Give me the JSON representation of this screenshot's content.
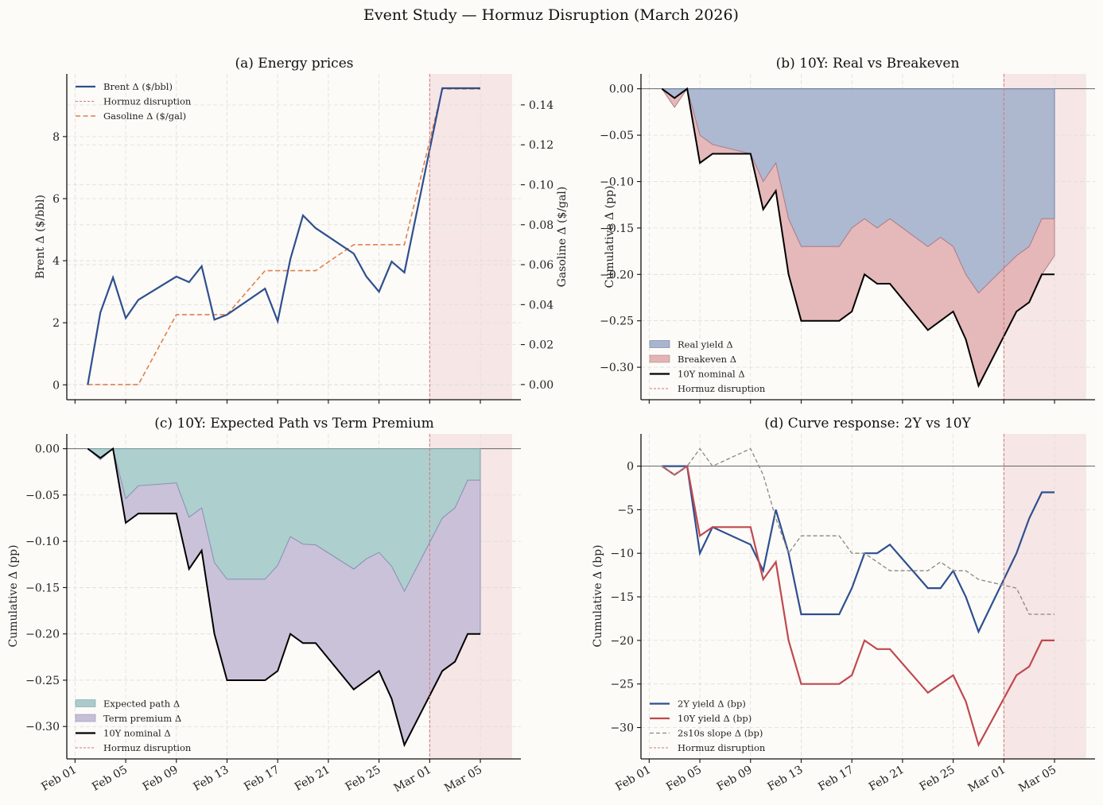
{
  "figure": {
    "title": "Event Study — Hormuz Disruption (March 2026)",
    "background": "#fcfbf7"
  },
  "colors": {
    "brent": "#2f4f8f",
    "gasoline": "#e0804f",
    "event_line": "#d07a7a",
    "event_shade": "#f6e6e6",
    "real_fill": "#a9b5cd",
    "real_edge": "#6d7fa8",
    "breakeven_fill": "#e4b4b5",
    "breakeven_edge": "#b07f8a",
    "expected_fill": "#a9cccb",
    "expected_edge": "#7e9eaa",
    "term_fill": "#c7bfd7",
    "term_edge": "#8c92b6",
    "nominal": "#000000",
    "y2": "#2f4f8f",
    "y10": "#c0484f",
    "slope": "#888888",
    "zero_line": "#555555"
  },
  "chart_data": {
    "x_dates": [
      "Feb 02",
      "Feb 03",
      "Feb 04",
      "Feb 05",
      "Feb 06",
      "Feb 09",
      "Feb 10",
      "Feb 11",
      "Feb 12",
      "Feb 13",
      "Feb 16",
      "Feb 17",
      "Feb 18",
      "Feb 19",
      "Feb 20",
      "Feb 23",
      "Feb 24",
      "Feb 25",
      "Feb 26",
      "Feb 27",
      "Mar 02",
      "Mar 03",
      "Mar 04",
      "Mar 05"
    ],
    "x_day_offset_from_feb01": [
      1,
      2,
      3,
      4,
      5,
      8,
      9,
      10,
      11,
      12,
      15,
      16,
      17,
      18,
      19,
      22,
      23,
      24,
      25,
      26,
      29,
      30,
      31,
      32
    ],
    "x_ticks": {
      "labels": [
        "Feb 01",
        "Feb 05",
        "Feb 09",
        "Feb 13",
        "Feb 17",
        "Feb 21",
        "Feb 25",
        "Mar 01",
        "Mar 05"
      ],
      "day_offsets": [
        0,
        4,
        8,
        12,
        16,
        20,
        24,
        28,
        32
      ]
    },
    "x_range_days": [
      -0.65,
      35.2
    ],
    "event": {
      "label": "Hormuz disruption",
      "start_day": 28,
      "shade_end_day": 34.5
    },
    "panels": [
      {
        "id": "a",
        "type": "line",
        "title": "(a) Energy prices",
        "ylabel": "Brent Δ ($/bbl)",
        "ylim": [
          -0.48,
          10.02
        ],
        "yticks": [
          0,
          2,
          4,
          6,
          8
        ],
        "ytick_labels": [
          "0",
          "2",
          "4",
          "6",
          "8"
        ],
        "y2label": "Gasoline Δ ($/gal)",
        "y2lim": [
          -0.0076,
          0.1555
        ],
        "y2ticks": [
          0.0,
          0.02,
          0.04,
          0.06,
          0.08,
          0.1,
          0.12,
          0.14
        ],
        "y2tick_labels": [
          "0.00",
          "0.02",
          "0.04",
          "0.06",
          "0.08",
          "0.10",
          "0.12",
          "0.14"
        ],
        "legend": {
          "placement": "upper-left",
          "entries": [
            "Brent Δ ($/bbl)",
            "Hormuz disruption",
            "Gasoline Δ ($/gal)"
          ]
        },
        "series": [
          {
            "name": "Brent Δ ($/bbl)",
            "axis": "left",
            "style": "solid",
            "values": [
              0,
              2.33,
              3.46,
              2.15,
              2.74,
              3.49,
              3.31,
              3.82,
              2.1,
              2.26,
              3.1,
              2.05,
              4.05,
              5.46,
              5.05,
              4.23,
              3.49,
              3.0,
              3.97,
              3.62,
              9.56,
              9.56,
              9.56,
              9.56
            ]
          },
          {
            "name": "Gasoline Δ ($/gal)",
            "axis": "right",
            "style": "dashed",
            "values": [
              0,
              0,
              0,
              0,
              0,
              0.035,
              0.035,
              0.035,
              0.035,
              0.035,
              0.057,
              0.057,
              0.057,
              0.057,
              0.057,
              0.07,
              0.07,
              0.07,
              0.07,
              0.07,
              0.148,
              0.148,
              0.148,
              0.148
            ]
          }
        ]
      },
      {
        "id": "b",
        "type": "area",
        "title": "(b) 10Y: Real vs Breakeven",
        "ylabel": "Cumulative Δ (pp)",
        "ylim": [
          -0.335,
          0.016
        ],
        "yticks": [
          0.0,
          -0.05,
          -0.1,
          -0.15,
          -0.2,
          -0.25,
          -0.3
        ],
        "ytick_labels": [
          "0.00",
          "−0.05",
          "−0.10",
          "−0.15",
          "−0.20",
          "−0.25",
          "−0.30"
        ],
        "legend": {
          "placement": "lower-left",
          "entries": [
            "Real yield Δ",
            "Breakeven Δ",
            "10Y nominal Δ",
            "Hormuz disruption"
          ]
        },
        "series": [
          {
            "name": "Real yield Δ",
            "kind": "stack-top",
            "values": [
              0,
              -0.01,
              0,
              -0.05,
              -0.06,
              -0.07,
              -0.1,
              -0.08,
              -0.14,
              -0.17,
              -0.17,
              -0.15,
              -0.14,
              -0.15,
              -0.14,
              -0.17,
              -0.16,
              -0.17,
              -0.2,
              -0.22,
              -0.18,
              -0.17,
              -0.14,
              -0.14
            ]
          },
          {
            "name": "Breakeven Δ",
            "kind": "stack-bottom",
            "values": [
              0,
              -0.01,
              0,
              -0.03,
              -0.01,
              0,
              -0.03,
              -0.03,
              -0.06,
              -0.08,
              -0.08,
              -0.09,
              -0.06,
              -0.06,
              -0.07,
              -0.09,
              -0.09,
              -0.07,
              -0.07,
              -0.1,
              -0.06,
              -0.06,
              -0.06,
              -0.04
            ]
          },
          {
            "name": "10Y nominal Δ",
            "kind": "line",
            "values": [
              0,
              -0.01,
              0,
              -0.08,
              -0.07,
              -0.07,
              -0.13,
              -0.11,
              -0.2,
              -0.25,
              -0.25,
              -0.24,
              -0.2,
              -0.21,
              -0.21,
              -0.26,
              -0.25,
              -0.24,
              -0.27,
              -0.32,
              -0.24,
              -0.23,
              -0.2,
              -0.2
            ]
          }
        ]
      },
      {
        "id": "c",
        "type": "area",
        "title": "(c) 10Y: Expected Path vs Term Premium",
        "ylabel": "Cumulative Δ (pp)",
        "ylim": [
          -0.335,
          0.016
        ],
        "yticks": [
          0.0,
          -0.05,
          -0.1,
          -0.15,
          -0.2,
          -0.25,
          -0.3
        ],
        "ytick_labels": [
          "0.00",
          "−0.05",
          "−0.10",
          "−0.15",
          "−0.20",
          "−0.25",
          "−0.30"
        ],
        "legend": {
          "placement": "lower-left",
          "entries": [
            "Expected path Δ",
            "Term premium Δ",
            "10Y nominal Δ",
            "Hormuz disruption"
          ]
        },
        "series": [
          {
            "name": "Expected path Δ",
            "kind": "stack-top",
            "values": [
              0,
              -0.01,
              0,
              -0.054,
              -0.04,
              -0.037,
              -0.074,
              -0.064,
              -0.123,
              -0.141,
              -0.141,
              -0.126,
              -0.095,
              -0.103,
              -0.104,
              -0.13,
              -0.119,
              -0.112,
              -0.127,
              -0.154,
              -0.075,
              -0.064,
              -0.034,
              -0.034
            ]
          },
          {
            "name": "Term premium Δ",
            "kind": "stack-bottom",
            "values": [
              0,
              -0.002,
              0,
              -0.026,
              -0.03,
              -0.033,
              -0.056,
              -0.046,
              -0.077,
              -0.109,
              -0.109,
              -0.114,
              -0.105,
              -0.107,
              -0.106,
              -0.13,
              -0.131,
              -0.128,
              -0.143,
              -0.166,
              -0.165,
              -0.166,
              -0.166,
              -0.166
            ]
          },
          {
            "name": "10Y nominal Δ",
            "kind": "line",
            "values": [
              0,
              -0.01,
              0,
              -0.08,
              -0.07,
              -0.07,
              -0.13,
              -0.11,
              -0.2,
              -0.25,
              -0.25,
              -0.24,
              -0.2,
              -0.21,
              -0.21,
              -0.26,
              -0.25,
              -0.24,
              -0.27,
              -0.32,
              -0.24,
              -0.23,
              -0.2,
              -0.2
            ]
          }
        ]
      },
      {
        "id": "d",
        "type": "line",
        "title": "(d) Curve response: 2Y vs 10Y",
        "ylabel": "Cumulative Δ (bp)",
        "ylim": [
          -33.6,
          3.7
        ],
        "yticks": [
          0,
          -5,
          -10,
          -15,
          -20,
          -25,
          -30
        ],
        "ytick_labels": [
          "0",
          "−5",
          "−10",
          "−15",
          "−20",
          "−25",
          "−30"
        ],
        "legend": {
          "placement": "lower-left",
          "entries": [
            "2Y yield Δ (bp)",
            "10Y yield Δ (bp)",
            "2s10s slope Δ (bp)",
            "Hormuz disruption"
          ]
        },
        "series": [
          {
            "name": "2Y yield Δ (bp)",
            "style": "solid",
            "values": [
              0,
              0,
              0,
              -10,
              -7,
              -9,
              -12,
              -5,
              -10,
              -17,
              -17,
              -14,
              -10,
              -10,
              -9,
              -14,
              -14,
              -12,
              -15,
              -19,
              -10,
              -6,
              -3,
              -3
            ]
          },
          {
            "name": "10Y yield Δ (bp)",
            "style": "solid",
            "values": [
              0,
              -1,
              0,
              -8,
              -7,
              -7,
              -13,
              -11,
              -20,
              -25,
              -25,
              -24,
              -20,
              -21,
              -21,
              -26,
              -25,
              -24,
              -27,
              -32,
              -24,
              -23,
              -20,
              -20
            ]
          },
          {
            "name": "2s10s slope Δ (bp)",
            "style": "dashed",
            "values": [
              0,
              -1,
              0,
              2,
              0,
              2,
              -1,
              -6,
              -10,
              -8,
              -8,
              -10,
              -10,
              -11,
              -12,
              -12,
              -11,
              -12,
              -12,
              -13,
              -14,
              -17,
              -17,
              -17
            ]
          }
        ]
      }
    ]
  }
}
